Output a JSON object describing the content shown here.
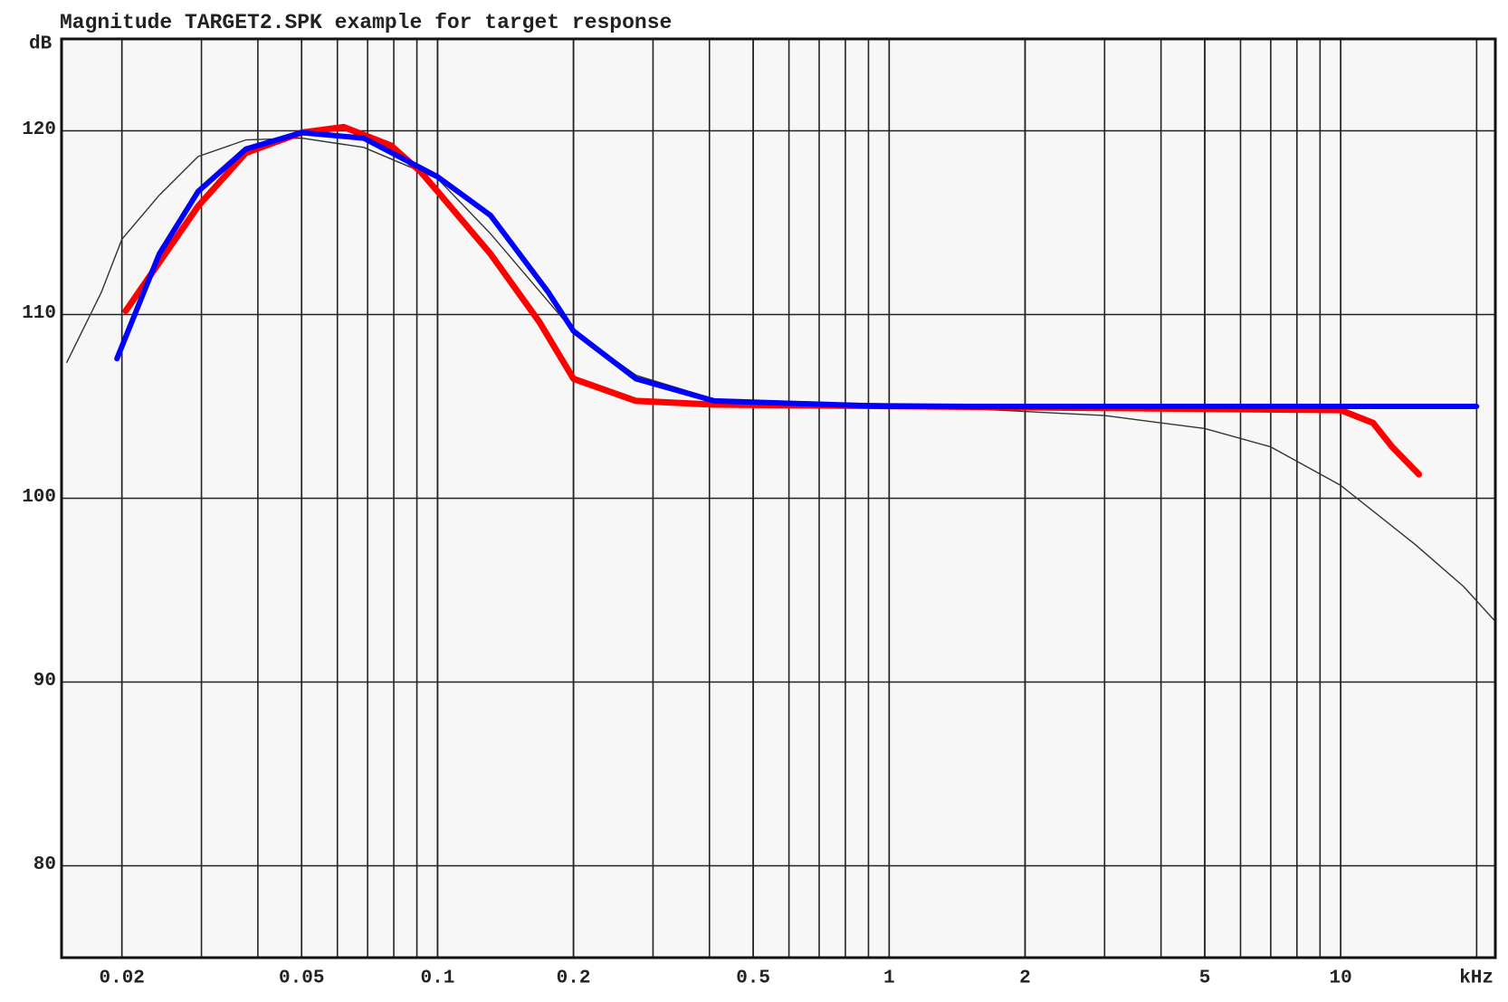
{
  "chart_data": {
    "type": "line",
    "title": "Magnitude TARGET2.SPK example for target response",
    "ylabel": "dB",
    "xlabel": "kHz",
    "xscale": "log",
    "xlim": [
      0.0147,
      22
    ],
    "ylim": [
      75,
      125
    ],
    "xticks": [
      0.02,
      0.05,
      0.1,
      0.2,
      0.5,
      1,
      2,
      5,
      10
    ],
    "yticks": [
      80,
      90,
      100,
      110,
      120
    ],
    "grid": true,
    "minor_grid": true,
    "series": [
      {
        "color": "#333333",
        "width": 1.4,
        "x": [
          0.0151,
          0.018,
          0.02,
          0.0242,
          0.0295,
          0.0376,
          0.05,
          0.0686,
          0.1,
          0.131,
          0.176,
          0.2,
          0.275,
          0.41,
          1,
          3,
          5,
          7,
          10,
          14.6,
          18.7,
          22
        ],
        "values": [
          107.4,
          111.2,
          114.1,
          116.5,
          118.6,
          119.5,
          119.6,
          119.1,
          117.4,
          114.4,
          110.7,
          109.1,
          106.7,
          105.4,
          105.1,
          104.5,
          103.8,
          102.8,
          100.7,
          97.5,
          95.2,
          93.3
        ]
      },
      {
        "color": "#ff0000",
        "width": 7,
        "x": [
          0.0204,
          0.0295,
          0.0376,
          0.05,
          0.062,
          0.0788,
          0.0915,
          0.1,
          0.131,
          0.168,
          0.2,
          0.275,
          0.41,
          10,
          11.8,
          13,
          14.9
        ],
        "values": [
          110.2,
          115.9,
          118.8,
          119.9,
          120.2,
          119.2,
          117.8,
          116.7,
          113.3,
          109.6,
          106.5,
          105.3,
          105.1,
          104.8,
          104.1,
          102.8,
          101.3
        ]
      },
      {
        "color": "#0000ff",
        "width": 6,
        "x": [
          0.0195,
          0.0242,
          0.0295,
          0.0376,
          0.05,
          0.0686,
          0.1,
          0.131,
          0.176,
          0.2,
          0.275,
          0.41,
          1,
          20
        ],
        "values": [
          107.6,
          113.3,
          116.7,
          119.0,
          119.9,
          119.6,
          117.5,
          115.4,
          111.2,
          109.1,
          106.5,
          105.3,
          105.0,
          105.0
        ]
      }
    ]
  }
}
